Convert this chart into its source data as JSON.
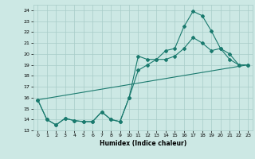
{
  "xlabel": "Humidex (Indice chaleur)",
  "xlim": [
    -0.5,
    23.5
  ],
  "ylim": [
    13,
    24.5
  ],
  "yticks": [
    13,
    14,
    15,
    16,
    17,
    18,
    19,
    20,
    21,
    22,
    23,
    24
  ],
  "xticks": [
    0,
    1,
    2,
    3,
    4,
    5,
    6,
    7,
    8,
    9,
    10,
    11,
    12,
    13,
    14,
    15,
    16,
    17,
    18,
    19,
    20,
    21,
    22,
    23
  ],
  "background_color": "#cce8e4",
  "grid_color": "#a8ccc8",
  "line_color": "#1a7a6e",
  "line1_x": [
    0,
    1,
    2,
    3,
    4,
    5,
    6,
    7,
    8,
    9,
    10,
    11,
    12,
    13,
    14,
    15,
    16,
    17,
    18,
    19,
    20,
    21,
    22,
    23
  ],
  "line1_y": [
    15.8,
    14.0,
    13.5,
    14.1,
    13.9,
    13.8,
    13.8,
    14.7,
    14.0,
    13.8,
    16.0,
    19.8,
    19.5,
    19.5,
    20.3,
    20.5,
    22.5,
    23.9,
    23.5,
    22.1,
    20.5,
    20.0,
    19.0,
    19.0
  ],
  "line2_x": [
    0,
    1,
    2,
    3,
    4,
    5,
    6,
    7,
    8,
    9,
    10,
    11,
    12,
    13,
    14,
    15,
    16,
    17,
    18,
    19,
    20,
    21,
    22,
    23
  ],
  "line2_y": [
    15.8,
    14.0,
    13.5,
    14.1,
    13.9,
    13.8,
    13.8,
    14.7,
    14.0,
    13.8,
    16.0,
    18.5,
    19.0,
    19.5,
    19.5,
    19.8,
    20.5,
    21.5,
    21.0,
    20.3,
    20.5,
    19.5,
    19.0,
    19.0
  ],
  "line3_x": [
    0,
    23
  ],
  "line3_y": [
    15.8,
    19.0
  ]
}
